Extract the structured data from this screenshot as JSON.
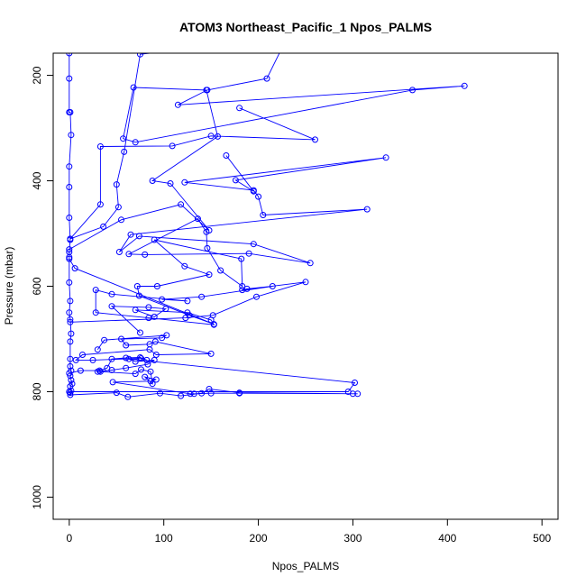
{
  "chart_data": {
    "type": "line",
    "title": "ATOM3 Northeast_Pacific_1 Npos_PALMS",
    "xlabel": "Npos_PALMS",
    "ylabel": "Pressure (mbar)",
    "xlim": [
      -17,
      517
    ],
    "ylim": [
      1042,
      158
    ],
    "y_reversed": true,
    "x_ticks": [
      0,
      100,
      200,
      300,
      400,
      500
    ],
    "y_ticks": [
      200,
      400,
      600,
      800,
      1000
    ],
    "grid": false,
    "legend": "none",
    "colors": {
      "series": "#0000ff",
      "frame": "#000000",
      "background": "#ffffff"
    },
    "marker": "open-circle",
    "series": [
      {
        "points": [
          [
            0,
            158
          ],
          [
            0,
            206
          ],
          [
            0,
            270
          ],
          [
            1,
            270
          ],
          [
            2,
            313
          ],
          [
            0,
            373
          ],
          [
            0,
            412
          ],
          [
            0,
            470
          ],
          [
            1,
            512
          ],
          [
            0,
            535
          ],
          [
            0,
            545
          ],
          [
            0,
            593
          ],
          [
            1,
            628
          ],
          [
            0,
            650
          ],
          [
            1,
            663
          ],
          [
            2,
            690
          ],
          [
            1,
            705
          ],
          [
            1,
            738
          ],
          [
            1,
            752
          ],
          [
            2,
            760
          ],
          [
            1,
            770
          ],
          [
            2,
            778
          ],
          [
            3,
            785
          ],
          [
            1,
            790
          ],
          [
            2,
            798
          ],
          [
            1,
            802
          ],
          [
            1,
            806
          ],
          [
            50,
            802
          ],
          [
            62,
            810
          ],
          [
            96,
            803
          ],
          [
            118,
            808
          ],
          [
            140,
            803
          ],
          [
            148,
            795
          ],
          [
            180,
            802
          ],
          [
            300,
            804
          ],
          [
            305,
            804
          ],
          [
            180,
            803
          ],
          [
            150,
            803
          ],
          [
            132,
            804
          ],
          [
            128,
            804
          ],
          [
            46,
            782
          ],
          [
            86,
            780
          ],
          [
            92,
            777
          ],
          [
            80,
            772
          ],
          [
            88,
            785
          ],
          [
            86,
            762
          ],
          [
            76,
            758
          ],
          [
            70,
            766
          ],
          [
            33,
            762
          ],
          [
            30,
            762
          ],
          [
            45,
            759
          ],
          [
            60,
            755
          ],
          [
            83,
            748
          ],
          [
            90,
            740
          ],
          [
            70,
            743
          ],
          [
            63,
            738
          ],
          [
            302,
            783
          ],
          [
            295,
            800
          ],
          [
            0,
            800
          ]
        ]
      },
      {
        "points": [
          [
            0,
            765
          ],
          [
            12,
            760
          ],
          [
            32,
            760
          ],
          [
            40,
            755
          ],
          [
            45,
            738
          ],
          [
            60,
            736
          ],
          [
            75,
            735
          ],
          [
            82,
            740
          ],
          [
            76,
            737
          ],
          [
            25,
            740
          ],
          [
            7,
            740
          ],
          [
            14,
            730
          ],
          [
            85,
            720
          ],
          [
            92,
            730
          ],
          [
            150,
            728
          ],
          [
            91,
            705
          ],
          [
            85,
            710
          ],
          [
            60,
            712
          ],
          [
            55,
            700
          ],
          [
            98,
            698
          ],
          [
            103,
            693
          ],
          [
            37,
            702
          ],
          [
            30,
            720
          ]
        ]
      },
      {
        "points": [
          [
            1,
            668
          ],
          [
            123,
            660
          ],
          [
            152,
            655
          ],
          [
            198,
            620
          ],
          [
            250,
            592
          ],
          [
            183,
            607
          ],
          [
            188,
            605
          ],
          [
            215,
            600
          ],
          [
            140,
            620
          ],
          [
            98,
            625
          ],
          [
            125,
            628
          ],
          [
            45,
            615
          ],
          [
            28,
            607
          ],
          [
            28,
            650
          ],
          [
            84,
            660
          ],
          [
            153,
            673
          ],
          [
            150,
            664
          ],
          [
            125,
            650
          ],
          [
            70,
            645
          ],
          [
            90,
            658
          ],
          [
            102,
            643
          ],
          [
            84,
            640
          ],
          [
            45,
            638
          ],
          [
            75,
            688
          ]
        ]
      },
      {
        "points": [
          [
            0,
            548
          ],
          [
            6,
            566
          ],
          [
            153,
            672
          ],
          [
            127,
            655
          ],
          [
            74,
            618
          ],
          [
            72,
            600
          ],
          [
            93,
            600
          ],
          [
            148,
            578
          ],
          [
            122,
            562
          ],
          [
            90,
            512
          ],
          [
            182,
            548
          ],
          [
            183,
            600
          ],
          [
            160,
            570
          ],
          [
            146,
            528
          ],
          [
            145,
            497
          ],
          [
            136,
            472
          ],
          [
            63,
            539
          ],
          [
            80,
            540
          ],
          [
            190,
            538
          ],
          [
            255,
            556
          ],
          [
            195,
            520
          ],
          [
            74,
            505
          ],
          [
            53,
            535
          ],
          [
            65,
            502
          ],
          [
            315,
            454
          ],
          [
            205,
            465
          ],
          [
            200,
            430
          ],
          [
            195,
            418
          ],
          [
            122,
            403
          ],
          [
            335,
            356
          ],
          [
            176,
            399
          ],
          [
            195,
            420
          ],
          [
            166,
            352
          ]
        ]
      },
      {
        "points": [
          [
            0,
            530
          ],
          [
            55,
            474
          ],
          [
            118,
            445
          ],
          [
            148,
            494
          ],
          [
            107,
            405
          ],
          [
            88,
            400
          ],
          [
            157,
            316
          ],
          [
            145,
            228
          ],
          [
            68,
            223
          ],
          [
            57,
            320
          ],
          [
            70,
            327
          ],
          [
            363,
            228
          ],
          [
            418,
            220
          ],
          [
            115,
            256
          ],
          [
            146,
            228
          ],
          [
            209,
            206
          ],
          [
            230,
            130
          ],
          [
            75,
            160
          ],
          [
            58,
            345
          ],
          [
            50,
            407
          ],
          [
            52,
            450
          ],
          [
            36,
            487
          ],
          [
            1,
            510
          ],
          [
            33,
            445
          ],
          [
            33,
            335
          ],
          [
            109,
            334
          ],
          [
            150,
            315
          ],
          [
            260,
            322
          ],
          [
            180,
            262
          ]
        ]
      }
    ]
  }
}
